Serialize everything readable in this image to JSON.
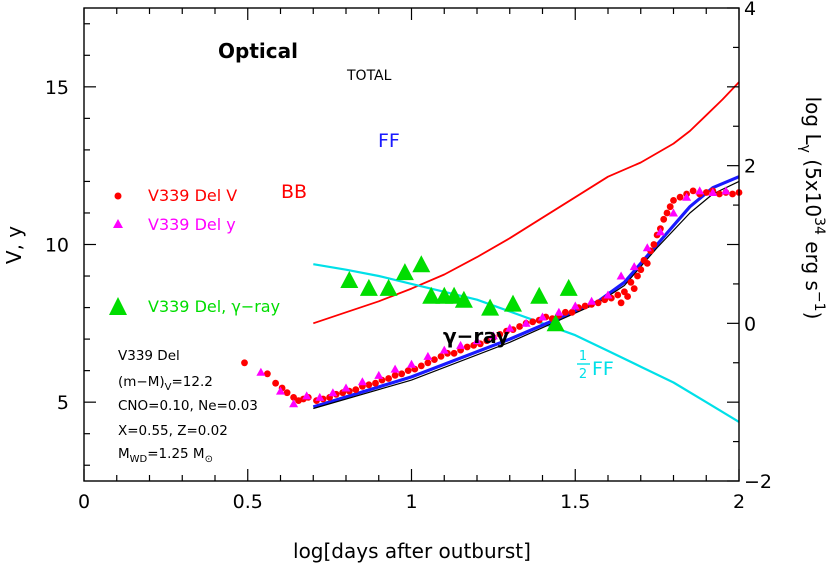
{
  "chart_data": {
    "type": "scatter",
    "xlabel": "log[days after outburst]",
    "ylabel_left": "V, y",
    "ylabel_right": {
      "prefix": "log L",
      "sub": "γ",
      "mid": " (5x10",
      "sup": "34",
      "unit": " erg s",
      "sup2": "−1",
      "suffix": ")"
    },
    "xlim": [
      0,
      2
    ],
    "ylim_left": [
      17.5,
      2.5
    ],
    "ylim_right": [
      -2,
      4
    ],
    "x_ticks": [
      "0",
      "0.5",
      "1",
      "1.5",
      "2"
    ],
    "y_left_ticks": [
      "5",
      "10",
      "15"
    ],
    "y_right_ticks": [
      "4",
      "2",
      "0",
      "−2"
    ],
    "annotations": {
      "optical": "Optical",
      "total": "TOTAL",
      "ff": "FF",
      "bb": "BB",
      "gamma": "γ−ray",
      "half_num": "1",
      "half_den": "2",
      "half_ff": "FF"
    },
    "legend": [
      {
        "label": "V339 Del V",
        "marker": "circle",
        "color": "#ff0000"
      },
      {
        "label": "V339 Del y",
        "marker": "triangle",
        "color": "#ff00ff"
      },
      {
        "label": "V339 Del, γ−ray",
        "marker": "triangle",
        "color": "#00dd00"
      }
    ],
    "params": {
      "name": "V339 Del",
      "dist_pre": "(m−M)",
      "dist_sub": "V",
      "dist_post": "=12.2",
      "cno": "CNO=0.10, Ne=0.03",
      "xz": "X=0.55, Z=0.02",
      "mwd_pre": "M",
      "mwd_sub": "WD",
      "mwd_post": "=1.25 M",
      "mwd_sun": "⊙"
    },
    "colors": {
      "V": "#ff0000",
      "y": "#ff00ff",
      "gamma": "#00dd00",
      "total": "#000000",
      "ff": "#1a1aff",
      "bb": "#ff0000",
      "half_ff": "#00e0e8"
    },
    "series": {
      "V_band": {
        "x": [
          0.49,
          0.56,
          0.585,
          0.605,
          0.62,
          0.64,
          0.655,
          0.67,
          0.685,
          0.71,
          0.73,
          0.75,
          0.77,
          0.79,
          0.81,
          0.83,
          0.85,
          0.87,
          0.89,
          0.91,
          0.93,
          0.95,
          0.97,
          0.99,
          1.01,
          1.03,
          1.05,
          1.07,
          1.09,
          1.11,
          1.13,
          1.15,
          1.17,
          1.19,
          1.21,
          1.23,
          1.25,
          1.27,
          1.29,
          1.31,
          1.33,
          1.35,
          1.37,
          1.39,
          1.41,
          1.43,
          1.45,
          1.47,
          1.49,
          1.51,
          1.53,
          1.55,
          1.57,
          1.59,
          1.61,
          1.63,
          1.64,
          1.65,
          1.66,
          1.67,
          1.68,
          1.69,
          1.7,
          1.71,
          1.72,
          1.73,
          1.74,
          1.75,
          1.76,
          1.77,
          1.78,
          1.79,
          1.8,
          1.82,
          1.84,
          1.86,
          1.88,
          1.9,
          1.92,
          1.94,
          1.96,
          1.98,
          2.0
        ],
        "y": [
          6.25,
          5.9,
          5.6,
          5.45,
          5.3,
          5.15,
          5.05,
          5.1,
          5.15,
          5.05,
          5.1,
          5.15,
          5.25,
          5.3,
          5.35,
          5.4,
          5.5,
          5.55,
          5.6,
          5.7,
          5.75,
          5.85,
          5.9,
          6.0,
          6.05,
          6.15,
          6.25,
          6.35,
          6.45,
          6.55,
          6.55,
          6.65,
          6.75,
          6.8,
          6.85,
          6.95,
          7.05,
          7.15,
          7.25,
          7.3,
          7.4,
          7.5,
          7.55,
          7.6,
          7.7,
          7.65,
          7.75,
          7.85,
          7.85,
          8.0,
          8.05,
          8.1,
          8.15,
          8.25,
          8.3,
          8.4,
          8.15,
          8.5,
          8.35,
          8.8,
          8.6,
          9.0,
          9.2,
          9.5,
          9.4,
          9.8,
          10.0,
          10.3,
          10.5,
          10.8,
          11.0,
          11.2,
          11.4,
          11.5,
          11.6,
          11.7,
          11.6,
          11.65,
          11.7,
          11.6,
          11.65,
          11.6,
          11.65
        ]
      },
      "y_band": {
        "x": [
          0.54,
          0.6,
          0.64,
          0.68,
          0.72,
          0.76,
          0.8,
          0.85,
          0.9,
          0.95,
          1.0,
          1.05,
          1.1,
          1.15,
          1.2,
          1.25,
          1.3,
          1.35,
          1.4,
          1.45,
          1.5,
          1.55,
          1.6,
          1.64,
          1.68,
          1.72,
          1.76,
          1.8,
          1.84,
          1.88,
          1.92,
          1.96
        ],
        "y": [
          5.95,
          5.35,
          4.95,
          5.2,
          5.15,
          5.3,
          5.45,
          5.65,
          5.85,
          6.05,
          6.2,
          6.45,
          6.65,
          6.8,
          6.95,
          7.1,
          7.35,
          7.5,
          7.7,
          7.85,
          8.05,
          8.2,
          8.4,
          9.0,
          9.3,
          9.9,
          10.4,
          11.0,
          11.5,
          11.7,
          11.65,
          11.7
        ]
      },
      "gamma_ray": {
        "x": [
          0.81,
          0.87,
          0.93,
          0.98,
          1.03,
          1.06,
          1.1,
          1.13,
          1.16,
          1.24,
          1.31,
          1.39,
          1.44,
          1.48
        ],
        "y": [
          0.55,
          0.45,
          0.45,
          0.65,
          0.75,
          0.35,
          0.35,
          0.35,
          0.3,
          0.2,
          0.25,
          0.35,
          0.0,
          0.45
        ]
      },
      "total_model": {
        "x": [
          0.7,
          1.0,
          1.3,
          1.57,
          1.65,
          1.75,
          1.85,
          1.92,
          2.0
        ],
        "y": [
          4.8,
          5.7,
          6.9,
          8.15,
          8.7,
          9.9,
          11.0,
          11.6,
          12.0
        ]
      },
      "ff_model": {
        "x": [
          0.7,
          1.0,
          1.3,
          1.57,
          1.65,
          1.75,
          1.85,
          1.92,
          2.0
        ],
        "y": [
          4.85,
          5.8,
          7.0,
          8.2,
          8.8,
          10.0,
          11.2,
          11.8,
          12.15
        ]
      },
      "bb_model": {
        "x": [
          0.7,
          0.8,
          0.9,
          1.0,
          1.1,
          1.2,
          1.3,
          1.4,
          1.5,
          1.6,
          1.7,
          1.8,
          1.85,
          1.9,
          1.95,
          2.0
        ],
        "y": [
          7.5,
          7.85,
          8.2,
          8.6,
          9.05,
          9.6,
          10.2,
          10.85,
          11.5,
          12.15,
          12.6,
          13.2,
          13.6,
          14.1,
          14.6,
          15.15
        ]
      },
      "half_ff_model": {
        "x": [
          0.7,
          0.8,
          0.9,
          1.0,
          1.1,
          1.2,
          1.3,
          1.4,
          1.5,
          1.6,
          1.7,
          1.8,
          1.9,
          2.0
        ],
        "y": [
          0.75,
          0.68,
          0.6,
          0.5,
          0.4,
          0.3,
          0.15,
          0.0,
          -0.15,
          -0.35,
          -0.55,
          -0.75,
          -1.0,
          -1.25
        ]
      }
    }
  }
}
